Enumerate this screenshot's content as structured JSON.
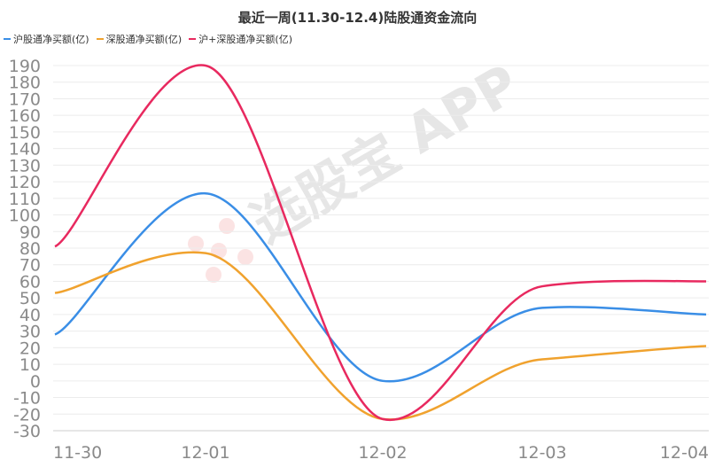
{
  "chart_data": {
    "type": "line",
    "title": "最近一周(11.30-12.4)陆股通资金流向",
    "xlabel": "",
    "ylabel": "",
    "categories": [
      "11-30",
      "12-01",
      "12-02",
      "12-03",
      "12-04"
    ],
    "ylim": [
      -30,
      190
    ],
    "yticks": [
      190,
      180,
      170,
      160,
      150,
      140,
      130,
      120,
      110,
      100,
      90,
      80,
      70,
      60,
      50,
      40,
      30,
      20,
      10,
      0,
      -10,
      -20,
      -30
    ],
    "grid": true,
    "legend_position": "top-left",
    "series": [
      {
        "name": "沪股通净买额(亿)",
        "color": "#3a8ee6",
        "values": [
          28,
          113,
          0,
          44,
          40
        ]
      },
      {
        "name": "深股通净买额(亿)",
        "color": "#f0a22e",
        "values": [
          53,
          77,
          -23,
          13,
          21
        ]
      },
      {
        "name": "沪+深股通净买额(亿)",
        "color": "#e8295f",
        "values": [
          81,
          190,
          -23,
          57,
          60
        ]
      }
    ]
  },
  "watermark": {
    "text": "选股宝 APP"
  }
}
